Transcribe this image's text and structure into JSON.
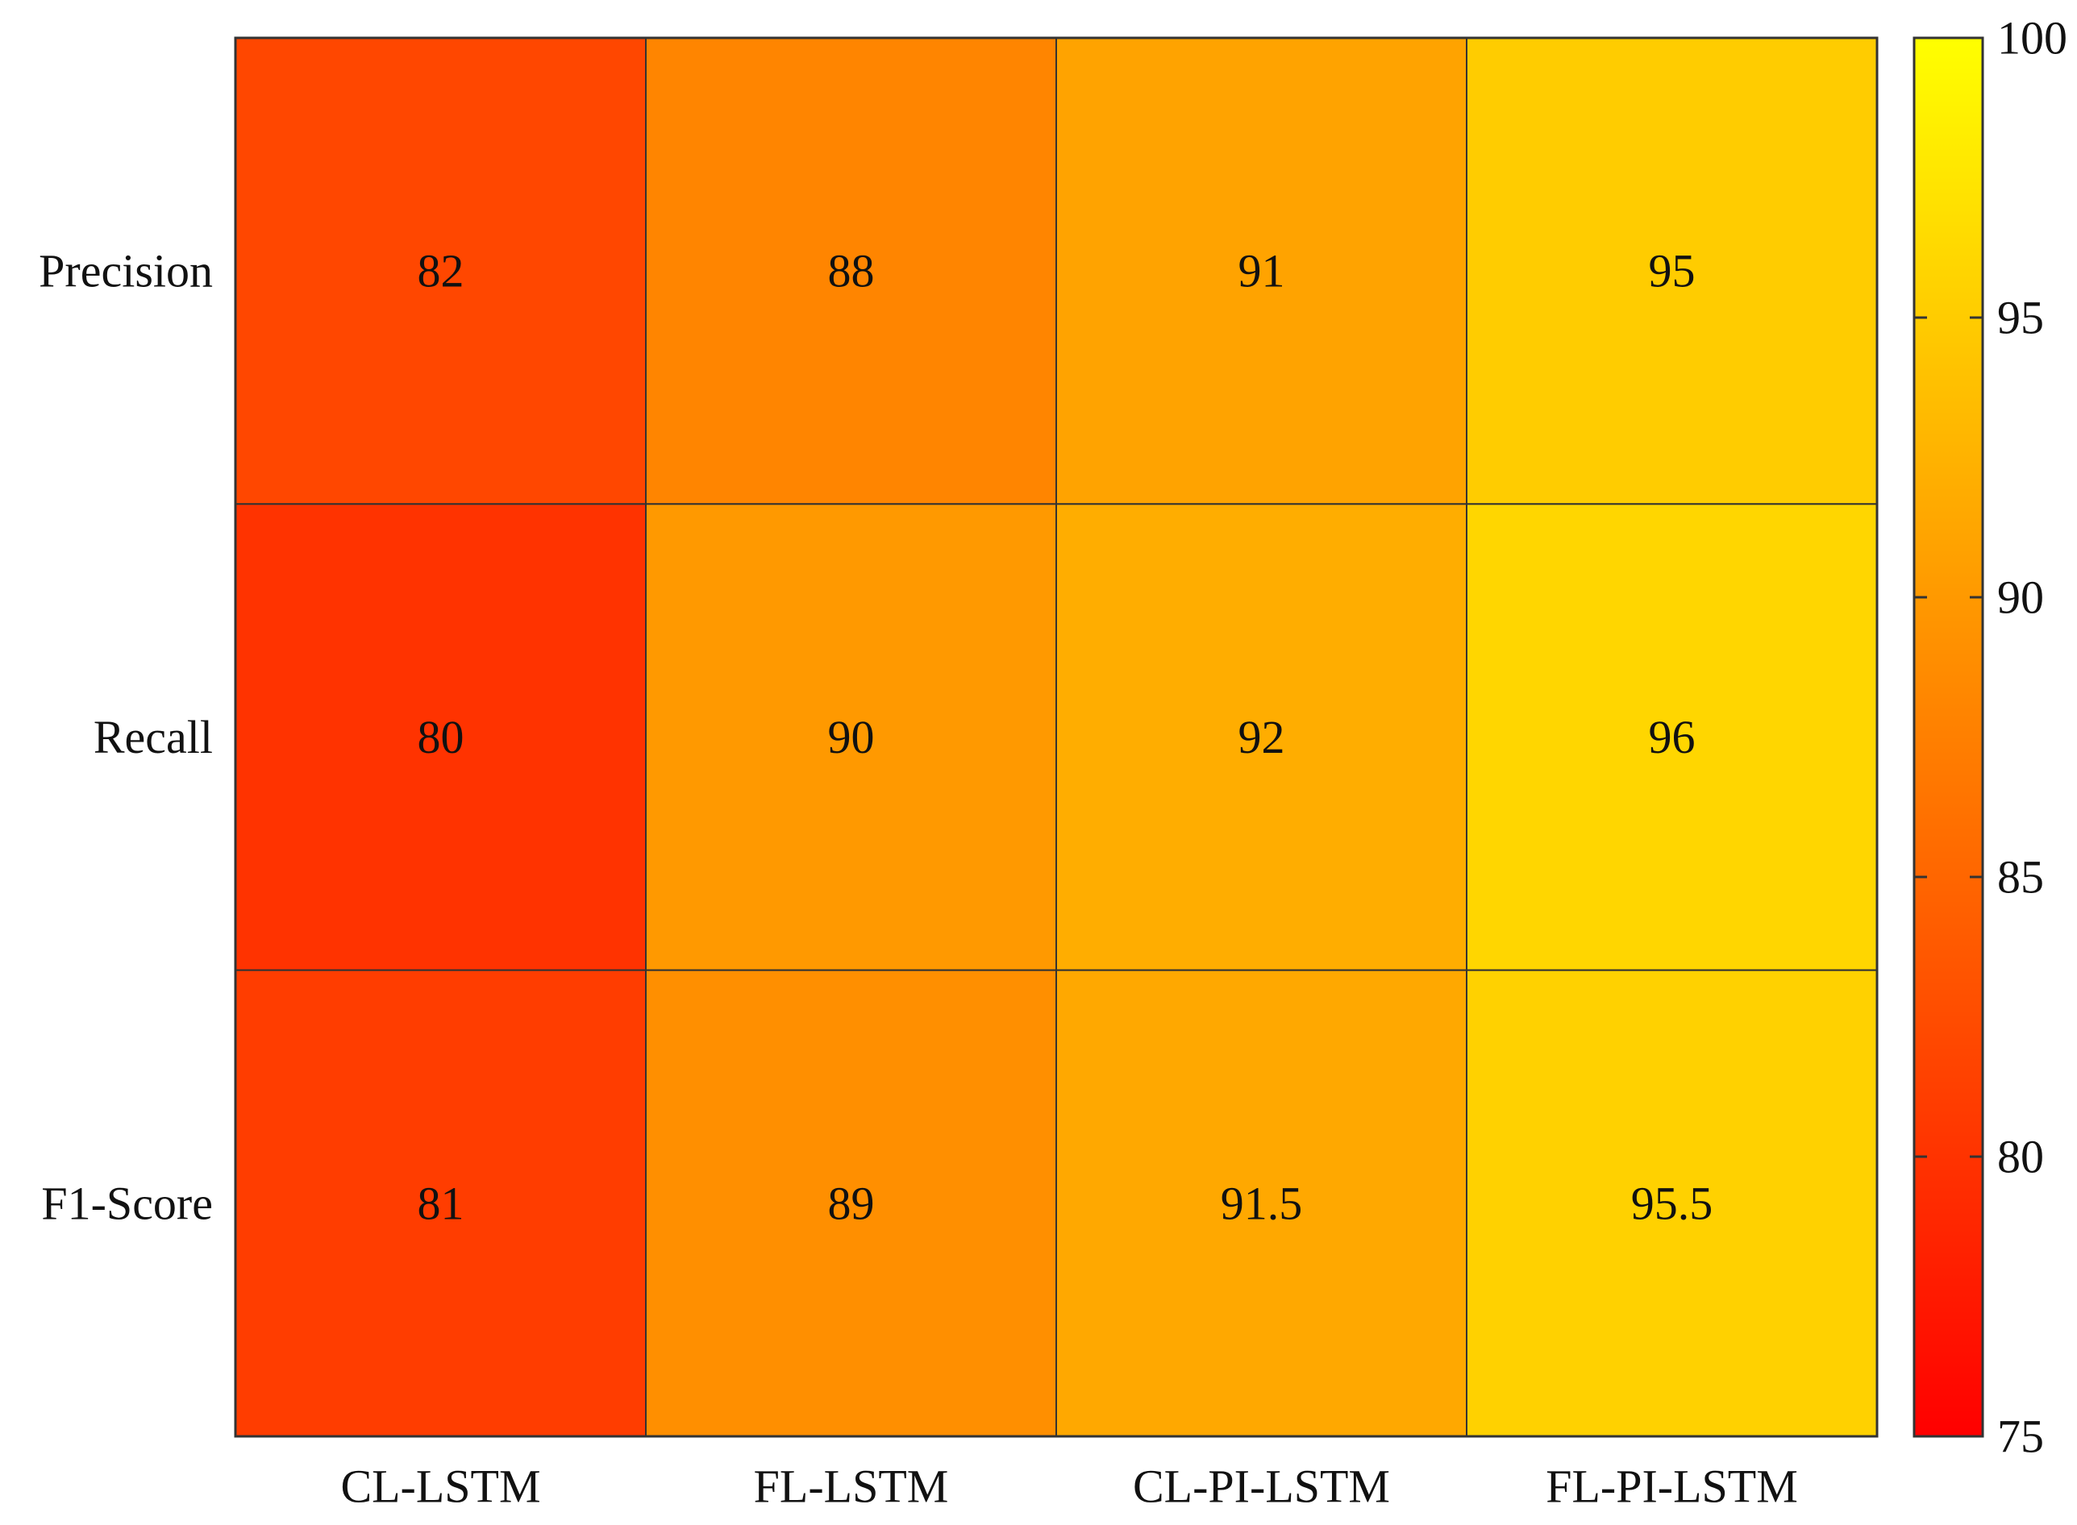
{
  "chart_data": {
    "type": "heatmap",
    "title": "",
    "xlabel": "",
    "ylabel": "",
    "x_categories": [
      "CL-LSTM",
      "FL-LSTM",
      "CL-PI-LSTM",
      "FL-PI-LSTM"
    ],
    "y_categories": [
      "Precision",
      "Recall",
      "F1-Score"
    ],
    "values": [
      [
        82,
        88,
        91,
        95
      ],
      [
        80,
        90,
        92,
        96
      ],
      [
        81,
        89,
        91.5,
        95.5
      ]
    ],
    "colorbar": {
      "min": 75,
      "max": 100,
      "ticks": [
        75,
        80,
        85,
        90,
        95,
        100
      ],
      "colors": [
        "#ff0000",
        "#ffff00"
      ],
      "placement": "right"
    },
    "grid": true
  }
}
